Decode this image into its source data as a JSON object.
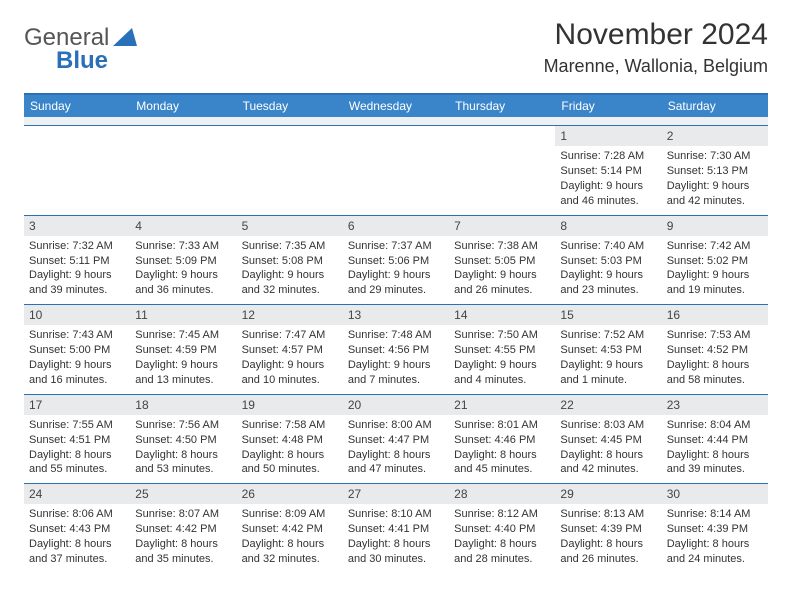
{
  "logo": {
    "general": "General",
    "blue": "Blue"
  },
  "title": "November 2024",
  "location": "Marenne, Wallonia, Belgium",
  "headers": [
    "Sunday",
    "Monday",
    "Tuesday",
    "Wednesday",
    "Thursday",
    "Friday",
    "Saturday"
  ],
  "colors": {
    "accent": "#2a70b8",
    "headerBg": "#3a85c9",
    "shadeBg": "#e8eaec",
    "text": "#333333",
    "pageBg": "#ffffff"
  },
  "weeks": [
    [
      null,
      null,
      null,
      null,
      null,
      {
        "n": "1",
        "sr": "Sunrise: 7:28 AM",
        "ss": "Sunset: 5:14 PM",
        "d1": "Daylight: 9 hours",
        "d2": "and 46 minutes."
      },
      {
        "n": "2",
        "sr": "Sunrise: 7:30 AM",
        "ss": "Sunset: 5:13 PM",
        "d1": "Daylight: 9 hours",
        "d2": "and 42 minutes."
      }
    ],
    [
      {
        "n": "3",
        "sr": "Sunrise: 7:32 AM",
        "ss": "Sunset: 5:11 PM",
        "d1": "Daylight: 9 hours",
        "d2": "and 39 minutes."
      },
      {
        "n": "4",
        "sr": "Sunrise: 7:33 AM",
        "ss": "Sunset: 5:09 PM",
        "d1": "Daylight: 9 hours",
        "d2": "and 36 minutes."
      },
      {
        "n": "5",
        "sr": "Sunrise: 7:35 AM",
        "ss": "Sunset: 5:08 PM",
        "d1": "Daylight: 9 hours",
        "d2": "and 32 minutes."
      },
      {
        "n": "6",
        "sr": "Sunrise: 7:37 AM",
        "ss": "Sunset: 5:06 PM",
        "d1": "Daylight: 9 hours",
        "d2": "and 29 minutes."
      },
      {
        "n": "7",
        "sr": "Sunrise: 7:38 AM",
        "ss": "Sunset: 5:05 PM",
        "d1": "Daylight: 9 hours",
        "d2": "and 26 minutes."
      },
      {
        "n": "8",
        "sr": "Sunrise: 7:40 AM",
        "ss": "Sunset: 5:03 PM",
        "d1": "Daylight: 9 hours",
        "d2": "and 23 minutes."
      },
      {
        "n": "9",
        "sr": "Sunrise: 7:42 AM",
        "ss": "Sunset: 5:02 PM",
        "d1": "Daylight: 9 hours",
        "d2": "and 19 minutes."
      }
    ],
    [
      {
        "n": "10",
        "sr": "Sunrise: 7:43 AM",
        "ss": "Sunset: 5:00 PM",
        "d1": "Daylight: 9 hours",
        "d2": "and 16 minutes."
      },
      {
        "n": "11",
        "sr": "Sunrise: 7:45 AM",
        "ss": "Sunset: 4:59 PM",
        "d1": "Daylight: 9 hours",
        "d2": "and 13 minutes."
      },
      {
        "n": "12",
        "sr": "Sunrise: 7:47 AM",
        "ss": "Sunset: 4:57 PM",
        "d1": "Daylight: 9 hours",
        "d2": "and 10 minutes."
      },
      {
        "n": "13",
        "sr": "Sunrise: 7:48 AM",
        "ss": "Sunset: 4:56 PM",
        "d1": "Daylight: 9 hours",
        "d2": "and 7 minutes."
      },
      {
        "n": "14",
        "sr": "Sunrise: 7:50 AM",
        "ss": "Sunset: 4:55 PM",
        "d1": "Daylight: 9 hours",
        "d2": "and 4 minutes."
      },
      {
        "n": "15",
        "sr": "Sunrise: 7:52 AM",
        "ss": "Sunset: 4:53 PM",
        "d1": "Daylight: 9 hours",
        "d2": "and 1 minute."
      },
      {
        "n": "16",
        "sr": "Sunrise: 7:53 AM",
        "ss": "Sunset: 4:52 PM",
        "d1": "Daylight: 8 hours",
        "d2": "and 58 minutes."
      }
    ],
    [
      {
        "n": "17",
        "sr": "Sunrise: 7:55 AM",
        "ss": "Sunset: 4:51 PM",
        "d1": "Daylight: 8 hours",
        "d2": "and 55 minutes."
      },
      {
        "n": "18",
        "sr": "Sunrise: 7:56 AM",
        "ss": "Sunset: 4:50 PM",
        "d1": "Daylight: 8 hours",
        "d2": "and 53 minutes."
      },
      {
        "n": "19",
        "sr": "Sunrise: 7:58 AM",
        "ss": "Sunset: 4:48 PM",
        "d1": "Daylight: 8 hours",
        "d2": "and 50 minutes."
      },
      {
        "n": "20",
        "sr": "Sunrise: 8:00 AM",
        "ss": "Sunset: 4:47 PM",
        "d1": "Daylight: 8 hours",
        "d2": "and 47 minutes."
      },
      {
        "n": "21",
        "sr": "Sunrise: 8:01 AM",
        "ss": "Sunset: 4:46 PM",
        "d1": "Daylight: 8 hours",
        "d2": "and 45 minutes."
      },
      {
        "n": "22",
        "sr": "Sunrise: 8:03 AM",
        "ss": "Sunset: 4:45 PM",
        "d1": "Daylight: 8 hours",
        "d2": "and 42 minutes."
      },
      {
        "n": "23",
        "sr": "Sunrise: 8:04 AM",
        "ss": "Sunset: 4:44 PM",
        "d1": "Daylight: 8 hours",
        "d2": "and 39 minutes."
      }
    ],
    [
      {
        "n": "24",
        "sr": "Sunrise: 8:06 AM",
        "ss": "Sunset: 4:43 PM",
        "d1": "Daylight: 8 hours",
        "d2": "and 37 minutes."
      },
      {
        "n": "25",
        "sr": "Sunrise: 8:07 AM",
        "ss": "Sunset: 4:42 PM",
        "d1": "Daylight: 8 hours",
        "d2": "and 35 minutes."
      },
      {
        "n": "26",
        "sr": "Sunrise: 8:09 AM",
        "ss": "Sunset: 4:42 PM",
        "d1": "Daylight: 8 hours",
        "d2": "and 32 minutes."
      },
      {
        "n": "27",
        "sr": "Sunrise: 8:10 AM",
        "ss": "Sunset: 4:41 PM",
        "d1": "Daylight: 8 hours",
        "d2": "and 30 minutes."
      },
      {
        "n": "28",
        "sr": "Sunrise: 8:12 AM",
        "ss": "Sunset: 4:40 PM",
        "d1": "Daylight: 8 hours",
        "d2": "and 28 minutes."
      },
      {
        "n": "29",
        "sr": "Sunrise: 8:13 AM",
        "ss": "Sunset: 4:39 PM",
        "d1": "Daylight: 8 hours",
        "d2": "and 26 minutes."
      },
      {
        "n": "30",
        "sr": "Sunrise: 8:14 AM",
        "ss": "Sunset: 4:39 PM",
        "d1": "Daylight: 8 hours",
        "d2": "and 24 minutes."
      }
    ]
  ]
}
